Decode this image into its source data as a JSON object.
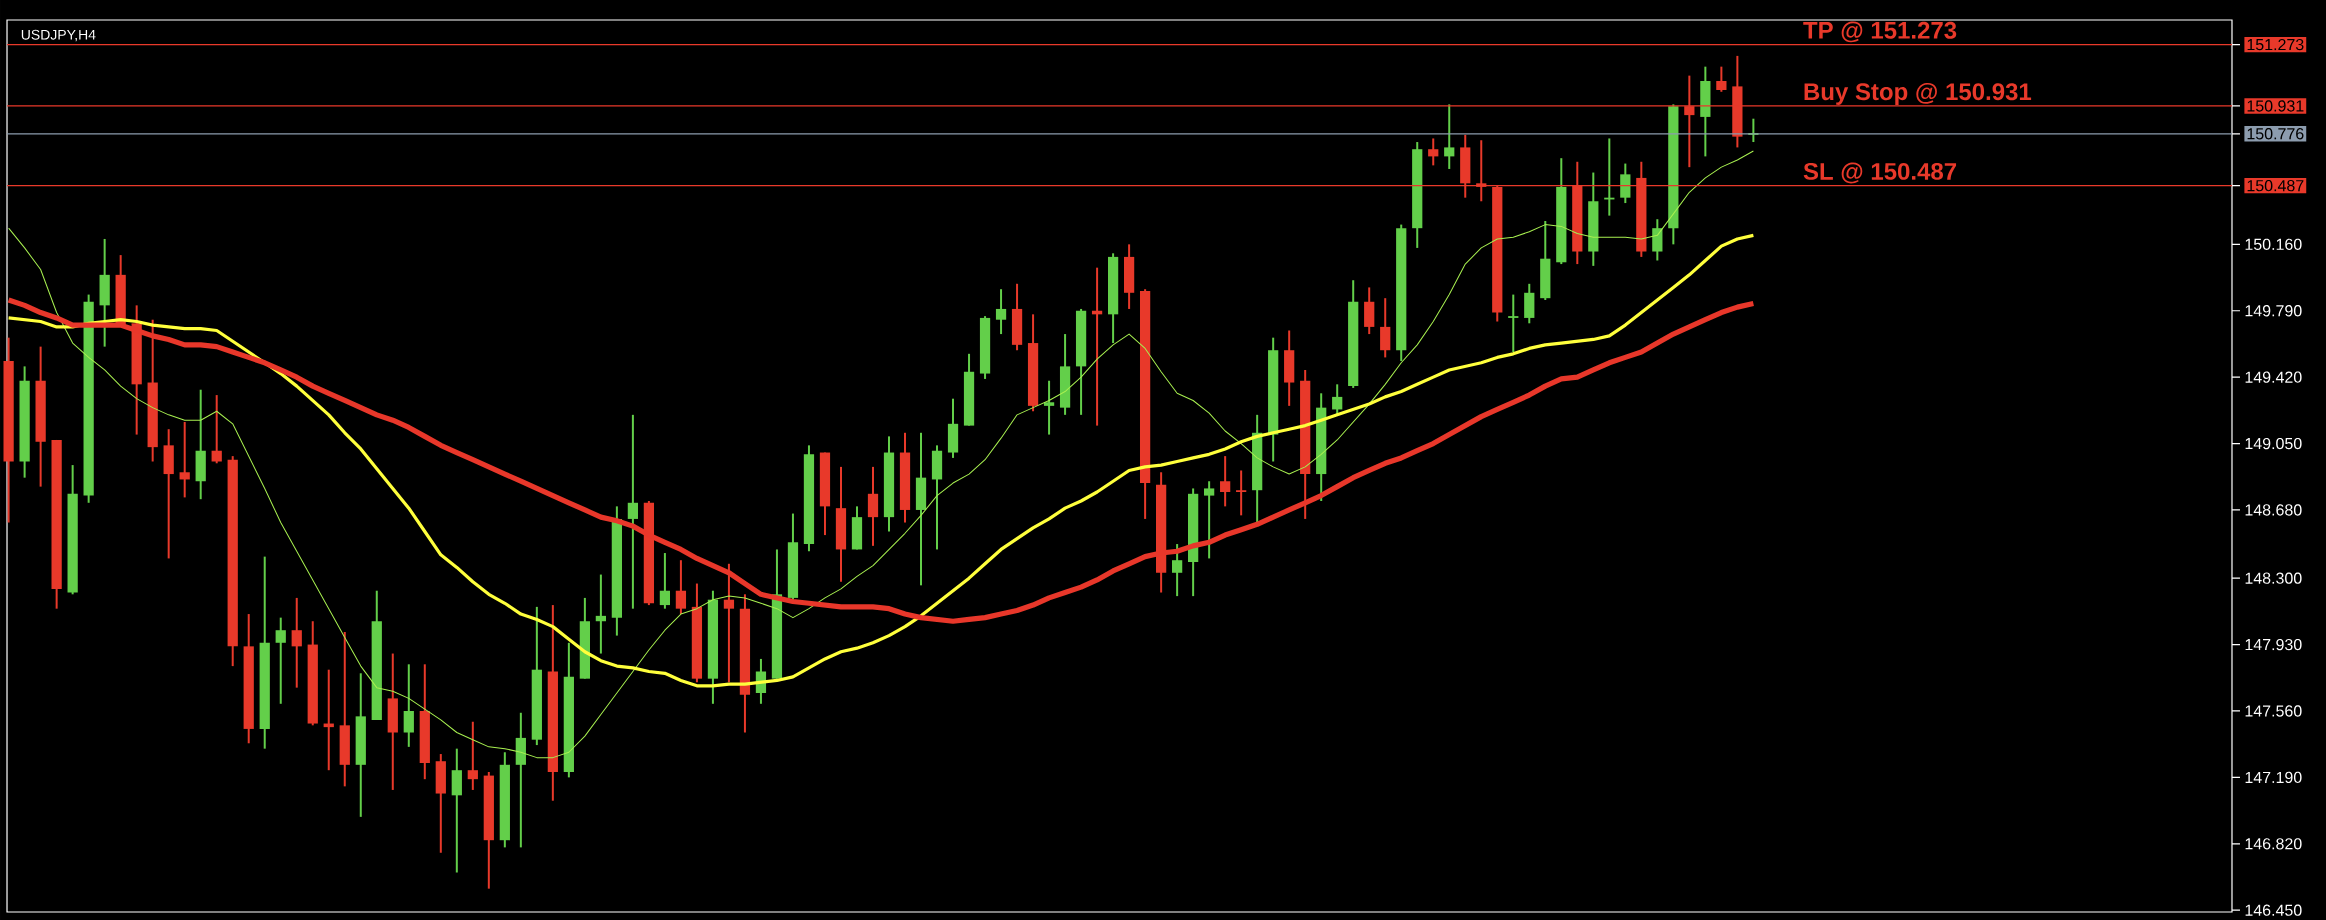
{
  "chart_data": {
    "type": "candlestick",
    "title": "USDJPY,H4",
    "categories": [
      null,
      null,
      null,
      null,
      null,
      null,
      null,
      null,
      null,
      null,
      null,
      null,
      null,
      null,
      null,
      null,
      null,
      null,
      null,
      null,
      null,
      null,
      null,
      null,
      null,
      null,
      null,
      null,
      null,
      null,
      null,
      null,
      null,
      null,
      null,
      null,
      null,
      null,
      null,
      null,
      null,
      null,
      null,
      null,
      null,
      null,
      null,
      null,
      null,
      null,
      null,
      null,
      null,
      null,
      null,
      null,
      null,
      null,
      null,
      null,
      null,
      null,
      null,
      null,
      null,
      null,
      null,
      null,
      null,
      null,
      null,
      null,
      null,
      null,
      null,
      null,
      null,
      null,
      null,
      null,
      null,
      null,
      null,
      null,
      null,
      null,
      null,
      null,
      null,
      null,
      null,
      null,
      null,
      null,
      null,
      null,
      null,
      null,
      null,
      null,
      null,
      null,
      null,
      null,
      null,
      null,
      null,
      null,
      null,
      null
    ],
    "ohlc": [
      [
        149.51,
        149.64,
        148.61,
        148.95
      ],
      [
        148.95,
        149.48,
        148.86,
        149.4
      ],
      [
        149.4,
        149.59,
        148.81,
        149.06
      ],
      [
        149.07,
        149.07,
        148.13,
        148.24
      ],
      [
        148.22,
        148.93,
        148.21,
        148.77
      ],
      [
        148.76,
        149.88,
        148.72,
        149.84
      ],
      [
        149.82,
        150.19,
        149.59,
        149.99
      ],
      [
        149.99,
        150.1,
        149.7,
        149.71
      ],
      [
        149.72,
        149.82,
        149.1,
        149.38
      ],
      [
        149.39,
        149.74,
        148.95,
        149.03
      ],
      [
        149.04,
        149.13,
        148.41,
        148.88
      ],
      [
        148.89,
        149.17,
        148.75,
        148.85
      ],
      [
        148.84,
        149.35,
        148.74,
        149.01
      ],
      [
        149.01,
        149.32,
        148.94,
        148.95
      ],
      [
        148.96,
        148.98,
        147.81,
        147.92
      ],
      [
        147.92,
        148.1,
        147.38,
        147.46
      ],
      [
        147.46,
        148.42,
        147.35,
        147.94
      ],
      [
        147.94,
        148.08,
        147.6,
        148.01
      ],
      [
        148.01,
        148.19,
        147.69,
        147.92
      ],
      [
        147.93,
        148.06,
        147.48,
        147.49
      ],
      [
        147.49,
        147.79,
        147.23,
        147.47
      ],
      [
        147.48,
        148.0,
        147.14,
        147.26
      ],
      [
        147.26,
        147.77,
        146.97,
        147.53
      ],
      [
        147.51,
        148.23,
        147.51,
        148.06
      ],
      [
        147.63,
        147.88,
        147.12,
        147.44
      ],
      [
        147.44,
        147.82,
        147.36,
        147.56
      ],
      [
        147.56,
        147.82,
        147.18,
        147.27
      ],
      [
        147.28,
        147.32,
        146.77,
        147.1
      ],
      [
        147.09,
        147.35,
        146.66,
        147.23
      ],
      [
        147.23,
        147.5,
        147.12,
        147.18
      ],
      [
        147.2,
        147.22,
        146.57,
        146.84
      ],
      [
        146.84,
        147.33,
        146.8,
        147.26
      ],
      [
        147.26,
        147.55,
        146.8,
        147.41
      ],
      [
        147.4,
        148.14,
        147.37,
        147.79
      ],
      [
        147.78,
        148.15,
        147.06,
        147.22
      ],
      [
        147.22,
        147.94,
        147.19,
        147.75
      ],
      [
        147.74,
        148.19,
        147.74,
        148.06
      ],
      [
        148.06,
        148.32,
        147.88,
        148.09
      ],
      [
        148.08,
        148.7,
        147.98,
        148.63
      ],
      [
        148.63,
        149.21,
        148.13,
        148.72
      ],
      [
        148.72,
        148.73,
        148.15,
        148.16
      ],
      [
        148.15,
        148.44,
        148.13,
        148.23
      ],
      [
        148.23,
        148.4,
        148.1,
        148.13
      ],
      [
        148.14,
        148.27,
        147.72,
        147.74
      ],
      [
        147.74,
        148.23,
        147.6,
        148.18
      ],
      [
        148.18,
        148.38,
        147.72,
        148.13
      ],
      [
        148.13,
        148.21,
        147.44,
        147.65
      ],
      [
        147.66,
        147.85,
        147.6,
        147.78
      ],
      [
        147.74,
        148.46,
        147.74,
        148.21
      ],
      [
        148.19,
        148.66,
        148.18,
        148.5
      ],
      [
        148.49,
        149.04,
        148.45,
        148.99
      ],
      [
        149.0,
        149.0,
        148.54,
        148.7
      ],
      [
        148.69,
        148.92,
        148.28,
        148.46
      ],
      [
        148.46,
        148.7,
        148.46,
        148.64
      ],
      [
        148.77,
        148.92,
        148.48,
        148.64
      ],
      [
        148.64,
        149.09,
        148.56,
        149.0
      ],
      [
        149.0,
        149.11,
        148.61,
        148.68
      ],
      [
        148.68,
        149.11,
        148.26,
        148.86
      ],
      [
        148.85,
        149.04,
        148.46,
        149.01
      ],
      [
        149.0,
        149.3,
        148.97,
        149.16
      ],
      [
        149.15,
        149.55,
        149.15,
        149.45
      ],
      [
        149.44,
        149.76,
        149.41,
        149.75
      ],
      [
        149.74,
        149.91,
        149.66,
        149.8
      ],
      [
        149.8,
        149.94,
        149.57,
        149.6
      ],
      [
        149.61,
        149.77,
        149.23,
        149.26
      ],
      [
        149.26,
        149.4,
        149.1,
        149.28
      ],
      [
        149.25,
        149.66,
        149.21,
        149.48
      ],
      [
        149.48,
        149.8,
        149.21,
        149.79
      ],
      [
        149.79,
        150.03,
        149.15,
        149.77
      ],
      [
        149.77,
        150.11,
        149.61,
        150.09
      ],
      [
        150.09,
        150.16,
        149.8,
        149.89
      ],
      [
        149.9,
        149.91,
        148.63,
        148.83
      ],
      [
        148.82,
        148.89,
        148.22,
        148.33
      ],
      [
        148.33,
        148.49,
        148.2,
        148.4
      ],
      [
        148.39,
        148.8,
        148.2,
        148.77
      ],
      [
        148.76,
        148.84,
        148.41,
        148.8
      ],
      [
        148.84,
        148.98,
        148.7,
        148.78
      ],
      [
        148.79,
        148.9,
        148.65,
        148.78
      ],
      [
        148.79,
        149.21,
        148.6,
        149.11
      ],
      [
        149.1,
        149.64,
        148.95,
        149.57
      ],
      [
        149.57,
        149.68,
        149.26,
        149.39
      ],
      [
        149.4,
        149.46,
        148.63,
        148.88
      ],
      [
        148.88,
        149.33,
        148.73,
        149.25
      ],
      [
        149.24,
        149.38,
        149.21,
        149.31
      ],
      [
        149.37,
        149.96,
        149.36,
        149.84
      ],
      [
        149.84,
        149.92,
        149.66,
        149.7
      ],
      [
        149.7,
        149.86,
        149.53,
        149.57
      ],
      [
        149.57,
        150.27,
        149.51,
        150.25
      ],
      [
        150.25,
        150.73,
        150.14,
        150.69
      ],
      [
        150.69,
        150.75,
        150.6,
        150.65
      ],
      [
        150.65,
        150.94,
        150.58,
        150.7
      ],
      [
        150.7,
        150.77,
        150.42,
        150.5
      ],
      [
        150.5,
        150.74,
        150.4,
        150.48
      ],
      [
        150.48,
        150.49,
        149.73,
        149.78
      ],
      [
        149.75,
        149.88,
        149.56,
        149.76
      ],
      [
        149.75,
        149.94,
        149.72,
        149.89
      ],
      [
        149.86,
        150.29,
        149.85,
        150.08
      ],
      [
        150.06,
        150.64,
        150.05,
        150.48
      ],
      [
        150.49,
        150.62,
        150.05,
        150.12
      ],
      [
        150.12,
        150.56,
        150.04,
        150.4
      ],
      [
        150.41,
        150.75,
        150.32,
        150.42
      ],
      [
        150.42,
        150.61,
        150.39,
        150.55
      ],
      [
        150.53,
        150.62,
        150.09,
        150.12
      ],
      [
        150.12,
        150.3,
        150.07,
        150.25
      ],
      [
        150.25,
        150.94,
        150.16,
        150.93
      ],
      [
        150.93,
        151.1,
        150.59,
        150.88
      ],
      [
        150.87,
        151.15,
        150.65,
        151.07
      ],
      [
        151.07,
        151.15,
        151.01,
        151.02
      ],
      [
        151.04,
        151.21,
        150.7,
        150.76
      ],
      [
        150.77,
        150.86,
        150.73,
        150.78
      ]
    ],
    "colors": [
      "#e8392a",
      "#63cf4a",
      "#e8392a",
      "#e8392a",
      "#63cf4a",
      "#63cf4a",
      "#63cf4a",
      "#e8392a",
      "#e8392a",
      "#e8392a",
      "#e8392a",
      "#e8392a",
      "#63cf4a",
      "#e8392a",
      "#e8392a",
      "#e8392a",
      "#63cf4a",
      "#63cf4a",
      "#e8392a",
      "#e8392a",
      "#e8392a",
      "#e8392a",
      "#63cf4a",
      "#63cf4a",
      "#e8392a",
      "#63cf4a",
      "#e8392a",
      "#e8392a",
      "#63cf4a",
      "#e8392a",
      "#e8392a",
      "#63cf4a",
      "#63cf4a",
      "#63cf4a",
      "#e8392a",
      "#63cf4a",
      "#63cf4a",
      "#63cf4a",
      "#63cf4a",
      "#63cf4a",
      "#e8392a",
      "#63cf4a",
      "#e8392a",
      "#e8392a",
      "#63cf4a",
      "#e8392a",
      "#e8392a",
      "#63cf4a",
      "#63cf4a",
      "#63cf4a",
      "#63cf4a",
      "#e8392a",
      "#e8392a",
      "#63cf4a",
      "#e8392a",
      "#63cf4a",
      "#e8392a",
      "#63cf4a",
      "#63cf4a",
      "#63cf4a",
      "#63cf4a",
      "#63cf4a",
      "#63cf4a",
      "#e8392a",
      "#e8392a",
      "#63cf4a",
      "#63cf4a",
      "#63cf4a",
      "#e8392a",
      "#63cf4a",
      "#e8392a",
      "#e8392a",
      "#e8392a",
      "#63cf4a",
      "#63cf4a",
      "#63cf4a",
      "#e8392a",
      "#e8392a",
      "#63cf4a",
      "#63cf4a",
      "#e8392a",
      "#e8392a",
      "#63cf4a",
      "#63cf4a",
      "#63cf4a",
      "#e8392a",
      "#e8392a",
      "#63cf4a",
      "#63cf4a",
      "#e8392a",
      "#63cf4a",
      "#e8392a",
      "#e8392a",
      "#e8392a",
      "#63cf4a",
      "#63cf4a",
      "#63cf4a",
      "#63cf4a",
      "#e8392a",
      "#63cf4a",
      "#63cf4a",
      "#63cf4a",
      "#e8392a",
      "#63cf4a",
      "#63cf4a",
      "#e8392a",
      "#63cf4a",
      "#e8392a",
      "#e8392a",
      "#63cf4a"
    ],
    "series": [
      {
        "type": "line",
        "color": "#a8f050",
        "values": [
          150.25,
          150.14,
          150.02,
          149.78,
          149.61,
          149.53,
          149.46,
          149.37,
          149.3,
          149.25,
          149.21,
          149.18,
          149.18,
          149.23,
          149.16,
          148.98,
          148.8,
          148.61,
          148.45,
          148.29,
          148.13,
          147.97,
          147.81,
          147.69,
          147.67,
          147.63,
          147.57,
          147.51,
          147.44,
          147.4,
          147.36,
          147.35,
          147.33,
          147.3,
          147.3,
          147.33,
          147.42,
          147.54,
          147.66,
          147.78,
          147.9,
          148.01,
          148.1,
          148.13,
          148.18,
          148.2,
          148.19,
          148.16,
          148.13,
          148.08,
          148.13,
          148.19,
          148.24,
          148.31,
          148.37,
          148.46,
          148.55,
          148.65,
          148.76,
          148.83,
          148.88,
          148.96,
          149.08,
          149.21,
          149.25,
          149.29,
          149.34,
          149.42,
          149.52,
          149.6,
          149.66,
          149.58,
          149.45,
          149.33,
          149.29,
          149.22,
          149.12,
          149.05,
          148.97,
          148.92,
          148.88,
          148.92,
          148.99,
          149.07,
          149.17,
          149.27,
          149.38,
          149.5,
          149.6,
          149.73,
          149.88,
          150.05,
          150.14,
          150.19,
          150.2,
          150.23,
          150.27,
          150.26,
          150.22,
          150.2,
          150.2,
          150.2,
          150.19,
          150.21,
          150.33,
          150.45,
          150.53,
          150.59,
          150.63,
          150.68
        ]
      },
      {
        "type": "line",
        "color": "#ffff3c",
        "values": [
          149.75,
          149.74,
          149.73,
          149.7,
          149.7,
          149.72,
          149.73,
          149.74,
          149.73,
          149.71,
          149.7,
          149.69,
          149.69,
          149.68,
          149.62,
          149.56,
          149.5,
          149.44,
          149.37,
          149.29,
          149.21,
          149.11,
          149.02,
          148.91,
          148.8,
          148.69,
          148.56,
          148.43,
          148.36,
          148.28,
          148.21,
          148.16,
          148.1,
          148.07,
          148.03,
          147.96,
          147.89,
          147.84,
          147.81,
          147.8,
          147.78,
          147.77,
          147.73,
          147.7,
          147.7,
          147.71,
          147.71,
          147.72,
          147.73,
          147.75,
          147.8,
          147.85,
          147.89,
          147.91,
          147.94,
          147.98,
          148.03,
          148.09,
          148.16,
          148.23,
          148.3,
          148.38,
          148.46,
          148.52,
          148.58,
          148.63,
          148.69,
          148.73,
          148.78,
          148.84,
          148.9,
          148.92,
          148.93,
          148.95,
          148.97,
          148.99,
          149.02,
          149.06,
          149.09,
          149.11,
          149.13,
          149.15,
          149.18,
          149.21,
          149.24,
          149.27,
          149.31,
          149.34,
          149.38,
          149.42,
          149.46,
          149.48,
          149.5,
          149.53,
          149.55,
          149.58,
          149.6,
          149.61,
          149.62,
          149.63,
          149.65,
          149.71,
          149.78,
          149.85,
          149.92,
          149.99,
          150.07,
          150.15,
          150.19,
          150.21
        ]
      },
      {
        "type": "line",
        "color": "#e8372a",
        "values": [
          149.85,
          149.82,
          149.78,
          149.75,
          149.71,
          149.71,
          149.71,
          149.71,
          149.68,
          149.65,
          149.63,
          149.6,
          149.6,
          149.59,
          149.56,
          149.53,
          149.5,
          149.46,
          149.42,
          149.37,
          149.33,
          149.29,
          149.25,
          149.21,
          149.18,
          149.14,
          149.09,
          149.04,
          149.0,
          148.96,
          148.92,
          148.88,
          148.84,
          148.8,
          148.76,
          148.72,
          148.68,
          148.64,
          148.62,
          148.59,
          148.54,
          148.5,
          148.46,
          148.41,
          148.37,
          148.33,
          148.27,
          148.21,
          148.19,
          148.17,
          148.16,
          148.15,
          148.14,
          148.14,
          148.14,
          148.13,
          148.1,
          148.08,
          148.07,
          148.06,
          148.07,
          148.08,
          148.1,
          148.12,
          148.15,
          148.19,
          148.22,
          148.25,
          148.29,
          148.34,
          148.38,
          148.42,
          148.44,
          148.45,
          148.48,
          148.5,
          148.54,
          148.57,
          148.6,
          148.64,
          148.68,
          148.72,
          148.76,
          148.81,
          148.86,
          148.9,
          148.94,
          148.97,
          149.01,
          149.05,
          149.1,
          149.15,
          149.2,
          149.24,
          149.28,
          149.32,
          149.37,
          149.41,
          149.42,
          149.46,
          149.5,
          149.53,
          149.56,
          149.61,
          149.66,
          149.7,
          149.74,
          149.78,
          149.81,
          149.83
        ]
      }
    ],
    "ylim": [
      146.44,
      151.41
    ],
    "yticks": [
      {
        "value": 151.273,
        "label": "151.273"
      },
      {
        "value": 150.931,
        "label": "150.931"
      },
      {
        "value": 150.776,
        "label": "150.776"
      },
      {
        "value": 150.487,
        "label": "150.487"
      },
      {
        "value": 150.16,
        "label": "150.160"
      },
      {
        "value": 149.79,
        "label": "149.790"
      },
      {
        "value": 149.42,
        "label": "149.420"
      },
      {
        "value": 149.05,
        "label": "149.050"
      },
      {
        "value": 148.68,
        "label": "148.680"
      },
      {
        "value": 148.3,
        "label": "148.300"
      },
      {
        "value": 147.93,
        "label": "147.930"
      },
      {
        "value": 147.56,
        "label": "147.560"
      },
      {
        "value": 147.19,
        "label": "147.190"
      },
      {
        "value": 146.82,
        "label": "146.820"
      },
      {
        "value": 146.45,
        "label": "146.450"
      }
    ],
    "ref_lines": [
      {
        "axis": "y",
        "value": 151.273,
        "label": "TP @ 151.273",
        "color": "#e8392a"
      },
      {
        "axis": "y",
        "value": 150.931,
        "label": "Buy Stop @ 150.931",
        "color": "#e8392a"
      },
      {
        "axis": "y",
        "value": 150.776,
        "color": "#8c9cae"
      },
      {
        "axis": "y",
        "value": 150.487,
        "label": "SL @ 150.487",
        "color": "#e8392a"
      }
    ],
    "tick_labels": "y"
  }
}
